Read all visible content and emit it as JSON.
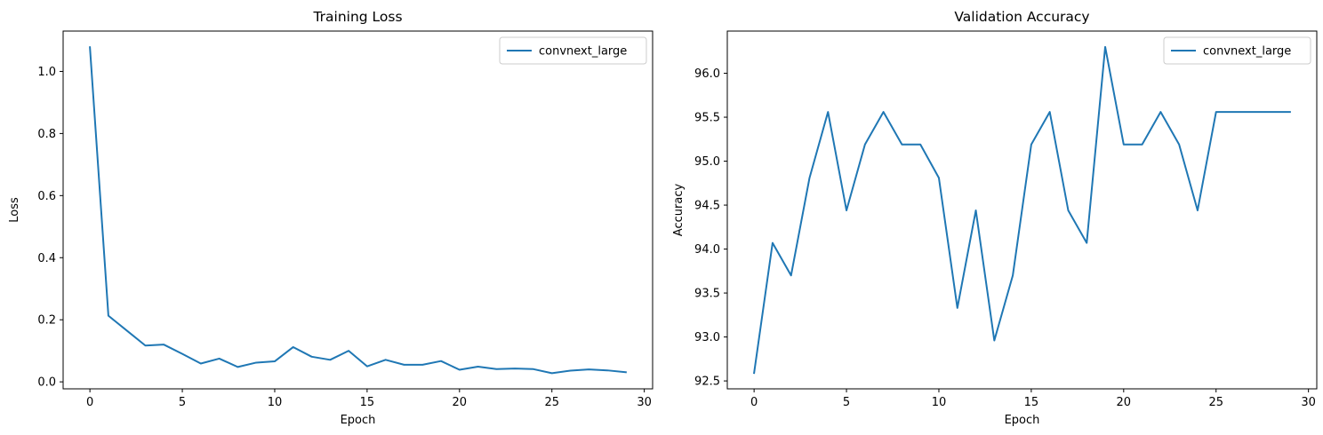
{
  "chart_data": [
    {
      "type": "line",
      "title": "Training Loss",
      "xlabel": "Epoch",
      "ylabel": "Loss",
      "xlim": [
        -1.45,
        30.45
      ],
      "ylim": [
        -0.0225,
        1.13
      ],
      "x_ticks": [
        0,
        5,
        10,
        15,
        20,
        25,
        30
      ],
      "y_ticks": [
        0.0,
        0.2,
        0.4,
        0.6,
        0.8,
        1.0
      ],
      "x_tick_labels": [
        "0",
        "5",
        "10",
        "15",
        "20",
        "25",
        "30"
      ],
      "y_tick_labels": [
        "0.0",
        "0.2",
        "0.4",
        "0.6",
        "0.8",
        "1.0"
      ],
      "grid": false,
      "legend_position": "top-right",
      "x": [
        0,
        1,
        2,
        3,
        4,
        5,
        6,
        7,
        8,
        9,
        10,
        11,
        12,
        13,
        14,
        15,
        16,
        17,
        18,
        19,
        20,
        21,
        22,
        23,
        24,
        25,
        26,
        27,
        28,
        29
      ],
      "series": [
        {
          "name": "convnext_large",
          "color": "#1f77b4",
          "values": [
            1.078,
            0.213,
            0.165,
            0.117,
            0.12,
            0.09,
            0.059,
            0.075,
            0.048,
            0.062,
            0.066,
            0.112,
            0.081,
            0.071,
            0.1,
            0.05,
            0.071,
            0.055,
            0.055,
            0.067,
            0.039,
            0.049,
            0.041,
            0.043,
            0.041,
            0.028,
            0.036,
            0.04,
            0.037,
            0.031
          ]
        }
      ]
    },
    {
      "type": "line",
      "title": "Validation Accuracy",
      "xlabel": "Epoch",
      "ylabel": "Accuracy",
      "xlim": [
        -1.45,
        30.45
      ],
      "ylim": [
        92.41,
        96.48
      ],
      "x_ticks": [
        0,
        5,
        10,
        15,
        20,
        25,
        30
      ],
      "y_ticks": [
        92.5,
        93.0,
        93.5,
        94.0,
        94.5,
        95.0,
        95.5,
        96.0
      ],
      "x_tick_labels": [
        "0",
        "5",
        "10",
        "15",
        "20",
        "25",
        "30"
      ],
      "y_tick_labels": [
        "92.5",
        "93.0",
        "93.5",
        "94.0",
        "94.5",
        "95.0",
        "95.5",
        "96.0"
      ],
      "grid": false,
      "legend_position": "top-right",
      "x": [
        0,
        1,
        2,
        3,
        4,
        5,
        6,
        7,
        8,
        9,
        10,
        11,
        12,
        13,
        14,
        15,
        16,
        17,
        18,
        19,
        20,
        21,
        22,
        23,
        24,
        25,
        26,
        27,
        28,
        29
      ],
      "series": [
        {
          "name": "convnext_large",
          "color": "#1f77b4",
          "values": [
            92.59,
            94.07,
            93.7,
            94.81,
            95.56,
            94.44,
            95.19,
            95.56,
            95.19,
            95.19,
            94.81,
            93.33,
            94.44,
            92.96,
            93.7,
            95.19,
            95.56,
            94.44,
            94.07,
            96.3,
            95.19,
            95.19,
            95.56,
            95.19,
            94.44,
            95.56,
            95.56,
            95.56,
            95.56,
            95.56
          ]
        }
      ]
    }
  ]
}
